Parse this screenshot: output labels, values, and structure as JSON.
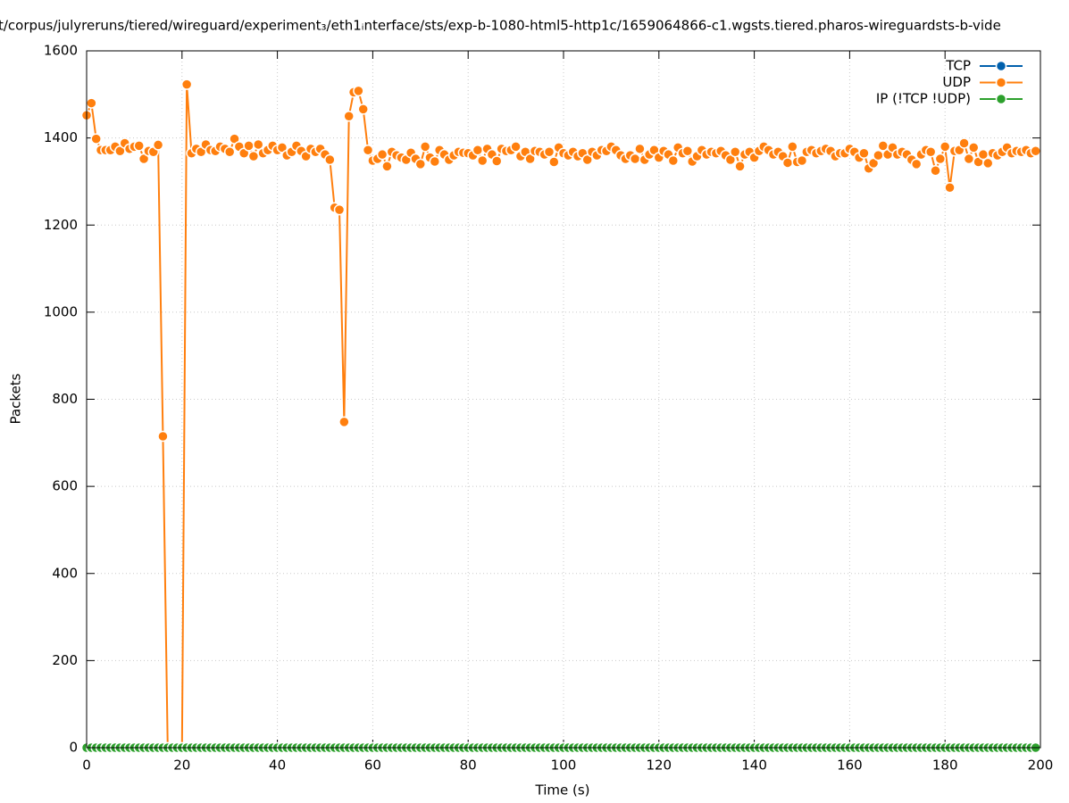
{
  "chart_data": {
    "type": "line",
    "title": "t/corpus/julyreruns/tiered/wireguard/experiment₃/eth1ᵢnterface/sts/exp-b-1080-html5-http1c/1659064866-c1.wgsts.tiered.pharos-wireguardsts-b-vide",
    "xlabel": "Time (s)",
    "ylabel": "Packets",
    "xlim": [
      0,
      200
    ],
    "ylim": [
      0,
      1600
    ],
    "xticks": [
      0,
      20,
      40,
      60,
      80,
      100,
      120,
      140,
      160,
      180,
      200
    ],
    "yticks": [
      0,
      200,
      400,
      600,
      800,
      1000,
      1200,
      1400,
      1600
    ],
    "grid": true,
    "legend": "top-right",
    "x": [
      0,
      1,
      2,
      3,
      4,
      5,
      6,
      7,
      8,
      9,
      10,
      11,
      12,
      13,
      14,
      15,
      16,
      17,
      18,
      19,
      20,
      21,
      22,
      23,
      24,
      25,
      26,
      27,
      28,
      29,
      30,
      31,
      32,
      33,
      34,
      35,
      36,
      37,
      38,
      39,
      40,
      41,
      42,
      43,
      44,
      45,
      46,
      47,
      48,
      49,
      50,
      51,
      52,
      53,
      54,
      55,
      56,
      57,
      58,
      59,
      60,
      61,
      62,
      63,
      64,
      65,
      66,
      67,
      68,
      69,
      70,
      71,
      72,
      73,
      74,
      75,
      76,
      77,
      78,
      79,
      80,
      81,
      82,
      83,
      84,
      85,
      86,
      87,
      88,
      89,
      90,
      91,
      92,
      93,
      94,
      95,
      96,
      97,
      98,
      99,
      100,
      101,
      102,
      103,
      104,
      105,
      106,
      107,
      108,
      109,
      110,
      111,
      112,
      113,
      114,
      115,
      116,
      117,
      118,
      119,
      120,
      121,
      122,
      123,
      124,
      125,
      126,
      127,
      128,
      129,
      130,
      131,
      132,
      133,
      134,
      135,
      136,
      137,
      138,
      139,
      140,
      141,
      142,
      143,
      144,
      145,
      146,
      147,
      148,
      149,
      150,
      151,
      152,
      153,
      154,
      155,
      156,
      157,
      158,
      159,
      160,
      161,
      162,
      163,
      164,
      165,
      166,
      167,
      168,
      169,
      170,
      171,
      172,
      173,
      174,
      175,
      176,
      177,
      178,
      179,
      180,
      181,
      182,
      183,
      184,
      185,
      186,
      187,
      188,
      189,
      190,
      191,
      192,
      193,
      194,
      195,
      196,
      197,
      198,
      199
    ],
    "series": [
      {
        "name": "TCP",
        "color": "#0060ad",
        "values": [
          0,
          0,
          0,
          0,
          0,
          0,
          0,
          0,
          0,
          0,
          0,
          0,
          0,
          0,
          0,
          0,
          0,
          0,
          0,
          0,
          0,
          0,
          0,
          0,
          0,
          0,
          0,
          0,
          0,
          0,
          0,
          0,
          0,
          0,
          0,
          0,
          0,
          0,
          0,
          0,
          0,
          0,
          0,
          0,
          0,
          0,
          0,
          0,
          0,
          0,
          0,
          0,
          0,
          0,
          0,
          0,
          0,
          0,
          0,
          0,
          0,
          0,
          0,
          0,
          0,
          0,
          0,
          0,
          0,
          0,
          0,
          0,
          0,
          0,
          0,
          0,
          0,
          0,
          0,
          0,
          0,
          0,
          0,
          0,
          0,
          0,
          0,
          0,
          0,
          0,
          0,
          0,
          0,
          0,
          0,
          0,
          0,
          0,
          0,
          0,
          0,
          0,
          0,
          0,
          0,
          0,
          0,
          0,
          0,
          0,
          0,
          0,
          0,
          0,
          0,
          0,
          0,
          0,
          0,
          0,
          0,
          0,
          0,
          0,
          0,
          0,
          0,
          0,
          0,
          0,
          0,
          0,
          0,
          0,
          0,
          0,
          0,
          0,
          0,
          0,
          0,
          0,
          0,
          0,
          0,
          0,
          0,
          0,
          0,
          0,
          0,
          0,
          0,
          0,
          0,
          0,
          0,
          0,
          0,
          0,
          0,
          0,
          0,
          0,
          0,
          0,
          0,
          0,
          0,
          0,
          0,
          0,
          0,
          0,
          0,
          0,
          0,
          0,
          0,
          0,
          0,
          0,
          0,
          0,
          0,
          0,
          0,
          0,
          0,
          0,
          0,
          0,
          0,
          0,
          0,
          0,
          0,
          0,
          0,
          0
        ]
      },
      {
        "name": "UDP",
        "color": "#ff7f0e",
        "values": [
          1452,
          1480,
          1398,
          1372,
          1372,
          1372,
          1380,
          1370,
          1388,
          1375,
          1380,
          1382,
          1352,
          1370,
          1368,
          1384,
          715,
          0,
          0,
          0,
          0,
          1523,
          1365,
          1375,
          1368,
          1385,
          1372,
          1370,
          1380,
          1375,
          1368,
          1398,
          1380,
          1365,
          1382,
          1358,
          1385,
          1365,
          1372,
          1382,
          1372,
          1378,
          1360,
          1368,
          1382,
          1370,
          1358,
          1375,
          1368,
          1375,
          1362,
          1350,
          1240,
          1235,
          748,
          1450,
          1505,
          1508,
          1466,
          1372,
          1348,
          1352,
          1362,
          1335,
          1368,
          1360,
          1355,
          1350,
          1366,
          1352,
          1340,
          1380,
          1355,
          1346,
          1372,
          1362,
          1350,
          1360,
          1368,
          1366,
          1365,
          1360,
          1372,
          1348,
          1375,
          1362,
          1347,
          1375,
          1370,
          1372,
          1380,
          1358,
          1368,
          1352,
          1370,
          1368,
          1362,
          1368,
          1345,
          1378,
          1365,
          1360,
          1368,
          1358,
          1365,
          1350,
          1368,
          1360,
          1372,
          1370,
          1380,
          1372,
          1360,
          1352,
          1360,
          1352,
          1375,
          1350,
          1362,
          1372,
          1355,
          1370,
          1362,
          1348,
          1378,
          1365,
          1370,
          1346,
          1358,
          1372,
          1362,
          1368,
          1365,
          1370,
          1360,
          1350,
          1368,
          1335,
          1362,
          1368,
          1355,
          1370,
          1380,
          1372,
          1362,
          1368,
          1358,
          1343,
          1380,
          1345,
          1348,
          1368,
          1372,
          1365,
          1370,
          1375,
          1370,
          1358,
          1365,
          1365,
          1375,
          1368,
          1355,
          1365,
          1330,
          1342,
          1360,
          1382,
          1362,
          1378,
          1362,
          1368,
          1362,
          1350,
          1340,
          1362,
          1372,
          1368,
          1325,
          1352,
          1380,
          1286,
          1370,
          1372,
          1388,
          1352,
          1378,
          1345,
          1362,
          1342,
          1365,
          1360,
          1368,
          1378,
          1365,
          1370,
          1368,
          1372,
          1365,
          1370
        ]
      },
      {
        "name": "IP (!TCP  !UDP)",
        "color": "#2ca02c",
        "values": [
          0,
          0,
          0,
          0,
          0,
          0,
          0,
          0,
          0,
          0,
          0,
          0,
          0,
          0,
          0,
          0,
          0,
          0,
          0,
          0,
          0,
          0,
          0,
          0,
          0,
          0,
          0,
          0,
          0,
          0,
          0,
          0,
          0,
          0,
          0,
          0,
          0,
          0,
          0,
          0,
          0,
          0,
          0,
          0,
          0,
          0,
          0,
          0,
          0,
          0,
          0,
          0,
          0,
          0,
          0,
          0,
          0,
          0,
          0,
          0,
          0,
          0,
          0,
          0,
          0,
          0,
          0,
          0,
          0,
          0,
          0,
          0,
          0,
          0,
          0,
          0,
          0,
          0,
          0,
          0,
          0,
          0,
          0,
          0,
          0,
          0,
          0,
          0,
          0,
          0,
          0,
          0,
          0,
          0,
          0,
          0,
          0,
          0,
          0,
          0,
          0,
          0,
          0,
          0,
          0,
          0,
          0,
          0,
          0,
          0,
          0,
          0,
          0,
          0,
          0,
          0,
          0,
          0,
          0,
          0,
          0,
          0,
          0,
          0,
          0,
          0,
          0,
          0,
          0,
          0,
          0,
          0,
          0,
          0,
          0,
          0,
          0,
          0,
          0,
          0,
          0,
          0,
          0,
          0,
          0,
          0,
          0,
          0,
          0,
          0,
          0,
          0,
          0,
          0,
          0,
          0,
          0,
          0,
          0,
          0,
          0,
          0,
          0,
          0,
          0,
          0,
          0,
          0,
          0,
          0,
          0,
          0,
          0,
          0,
          0,
          0,
          0,
          0,
          0,
          0,
          0,
          0,
          0,
          0,
          0,
          0,
          0,
          0,
          0,
          0,
          0,
          0,
          0,
          0,
          0,
          0,
          0,
          0,
          0,
          0
        ]
      }
    ]
  }
}
